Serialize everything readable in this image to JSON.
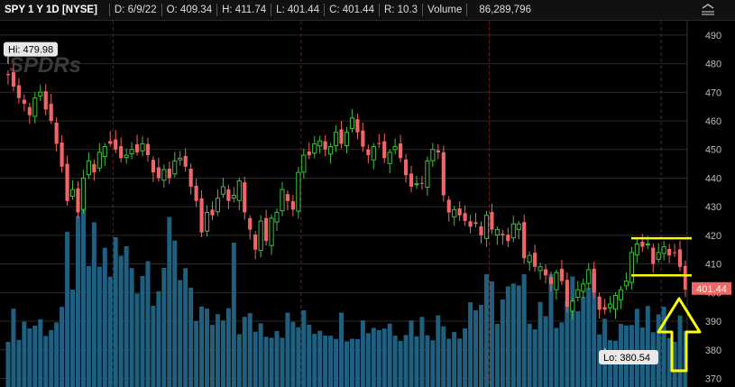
{
  "header": {
    "symbol": "SPY 1 Y 1D [NYSE]",
    "date": "D: 6/9/22",
    "open": "O: 409.34",
    "high": "H: 411.74",
    "low": "L: 401.44",
    "close": "C: 401.44",
    "range": "R: 10.3",
    "volume_label": "Volume",
    "volume_value": "86,289,796"
  },
  "annotations": {
    "hi_label": "Hi: 479.98",
    "lo_label": "Lo: 380.54",
    "last_price": "401.44",
    "watermark": "SPDRs"
  },
  "colors": {
    "up": "#3fbf3f",
    "down": "#f06565",
    "volume": "#1f5f80",
    "grid": "#2a2a2a",
    "period_line": "#6a1f1f",
    "highlight": "#ffff00"
  },
  "chart_data": {
    "type": "candlestick",
    "ylim": [
      367,
      495
    ],
    "yticks": [
      370,
      380,
      390,
      400,
      410,
      420,
      430,
      440,
      450,
      460,
      470,
      480,
      490
    ],
    "grid": true,
    "closes": [
      476,
      472,
      468,
      466,
      462,
      468,
      470,
      464,
      460,
      452,
      444,
      432,
      436,
      428,
      440,
      446,
      442,
      449,
      451,
      452,
      450,
      447,
      448,
      450,
      449,
      452,
      448,
      442,
      440,
      443,
      440,
      446,
      447,
      444,
      437,
      432,
      421,
      428,
      427,
      433,
      437,
      432,
      434,
      439,
      428,
      422,
      415,
      425,
      418,
      426,
      428,
      436,
      432,
      429,
      442,
      448,
      448,
      452,
      453,
      450,
      451,
      456,
      452,
      456,
      461,
      456,
      451,
      448,
      451,
      452,
      447,
      449,
      451,
      447,
      441,
      437,
      438,
      438,
      446,
      450,
      449,
      434,
      428,
      429,
      427,
      425,
      423,
      424,
      420,
      427,
      422,
      422,
      420,
      418,
      424,
      424,
      412,
      413,
      409,
      409,
      406,
      403,
      407,
      404,
      395,
      397,
      401,
      403,
      408,
      400,
      394,
      394,
      396,
      399,
      401,
      404,
      414,
      417,
      416,
      417,
      410,
      414,
      416,
      413,
      414,
      409,
      401
    ],
    "hi": {
      "value": 479.98,
      "label": "Hi: 479.98"
    },
    "lo": {
      "value": 380.54,
      "label": "Lo: 380.54"
    },
    "last": 401.44,
    "highlight_box": {
      "top": 419,
      "bottom": 406
    },
    "period_lines_index": [
      20,
      55,
      90,
      122
    ]
  }
}
